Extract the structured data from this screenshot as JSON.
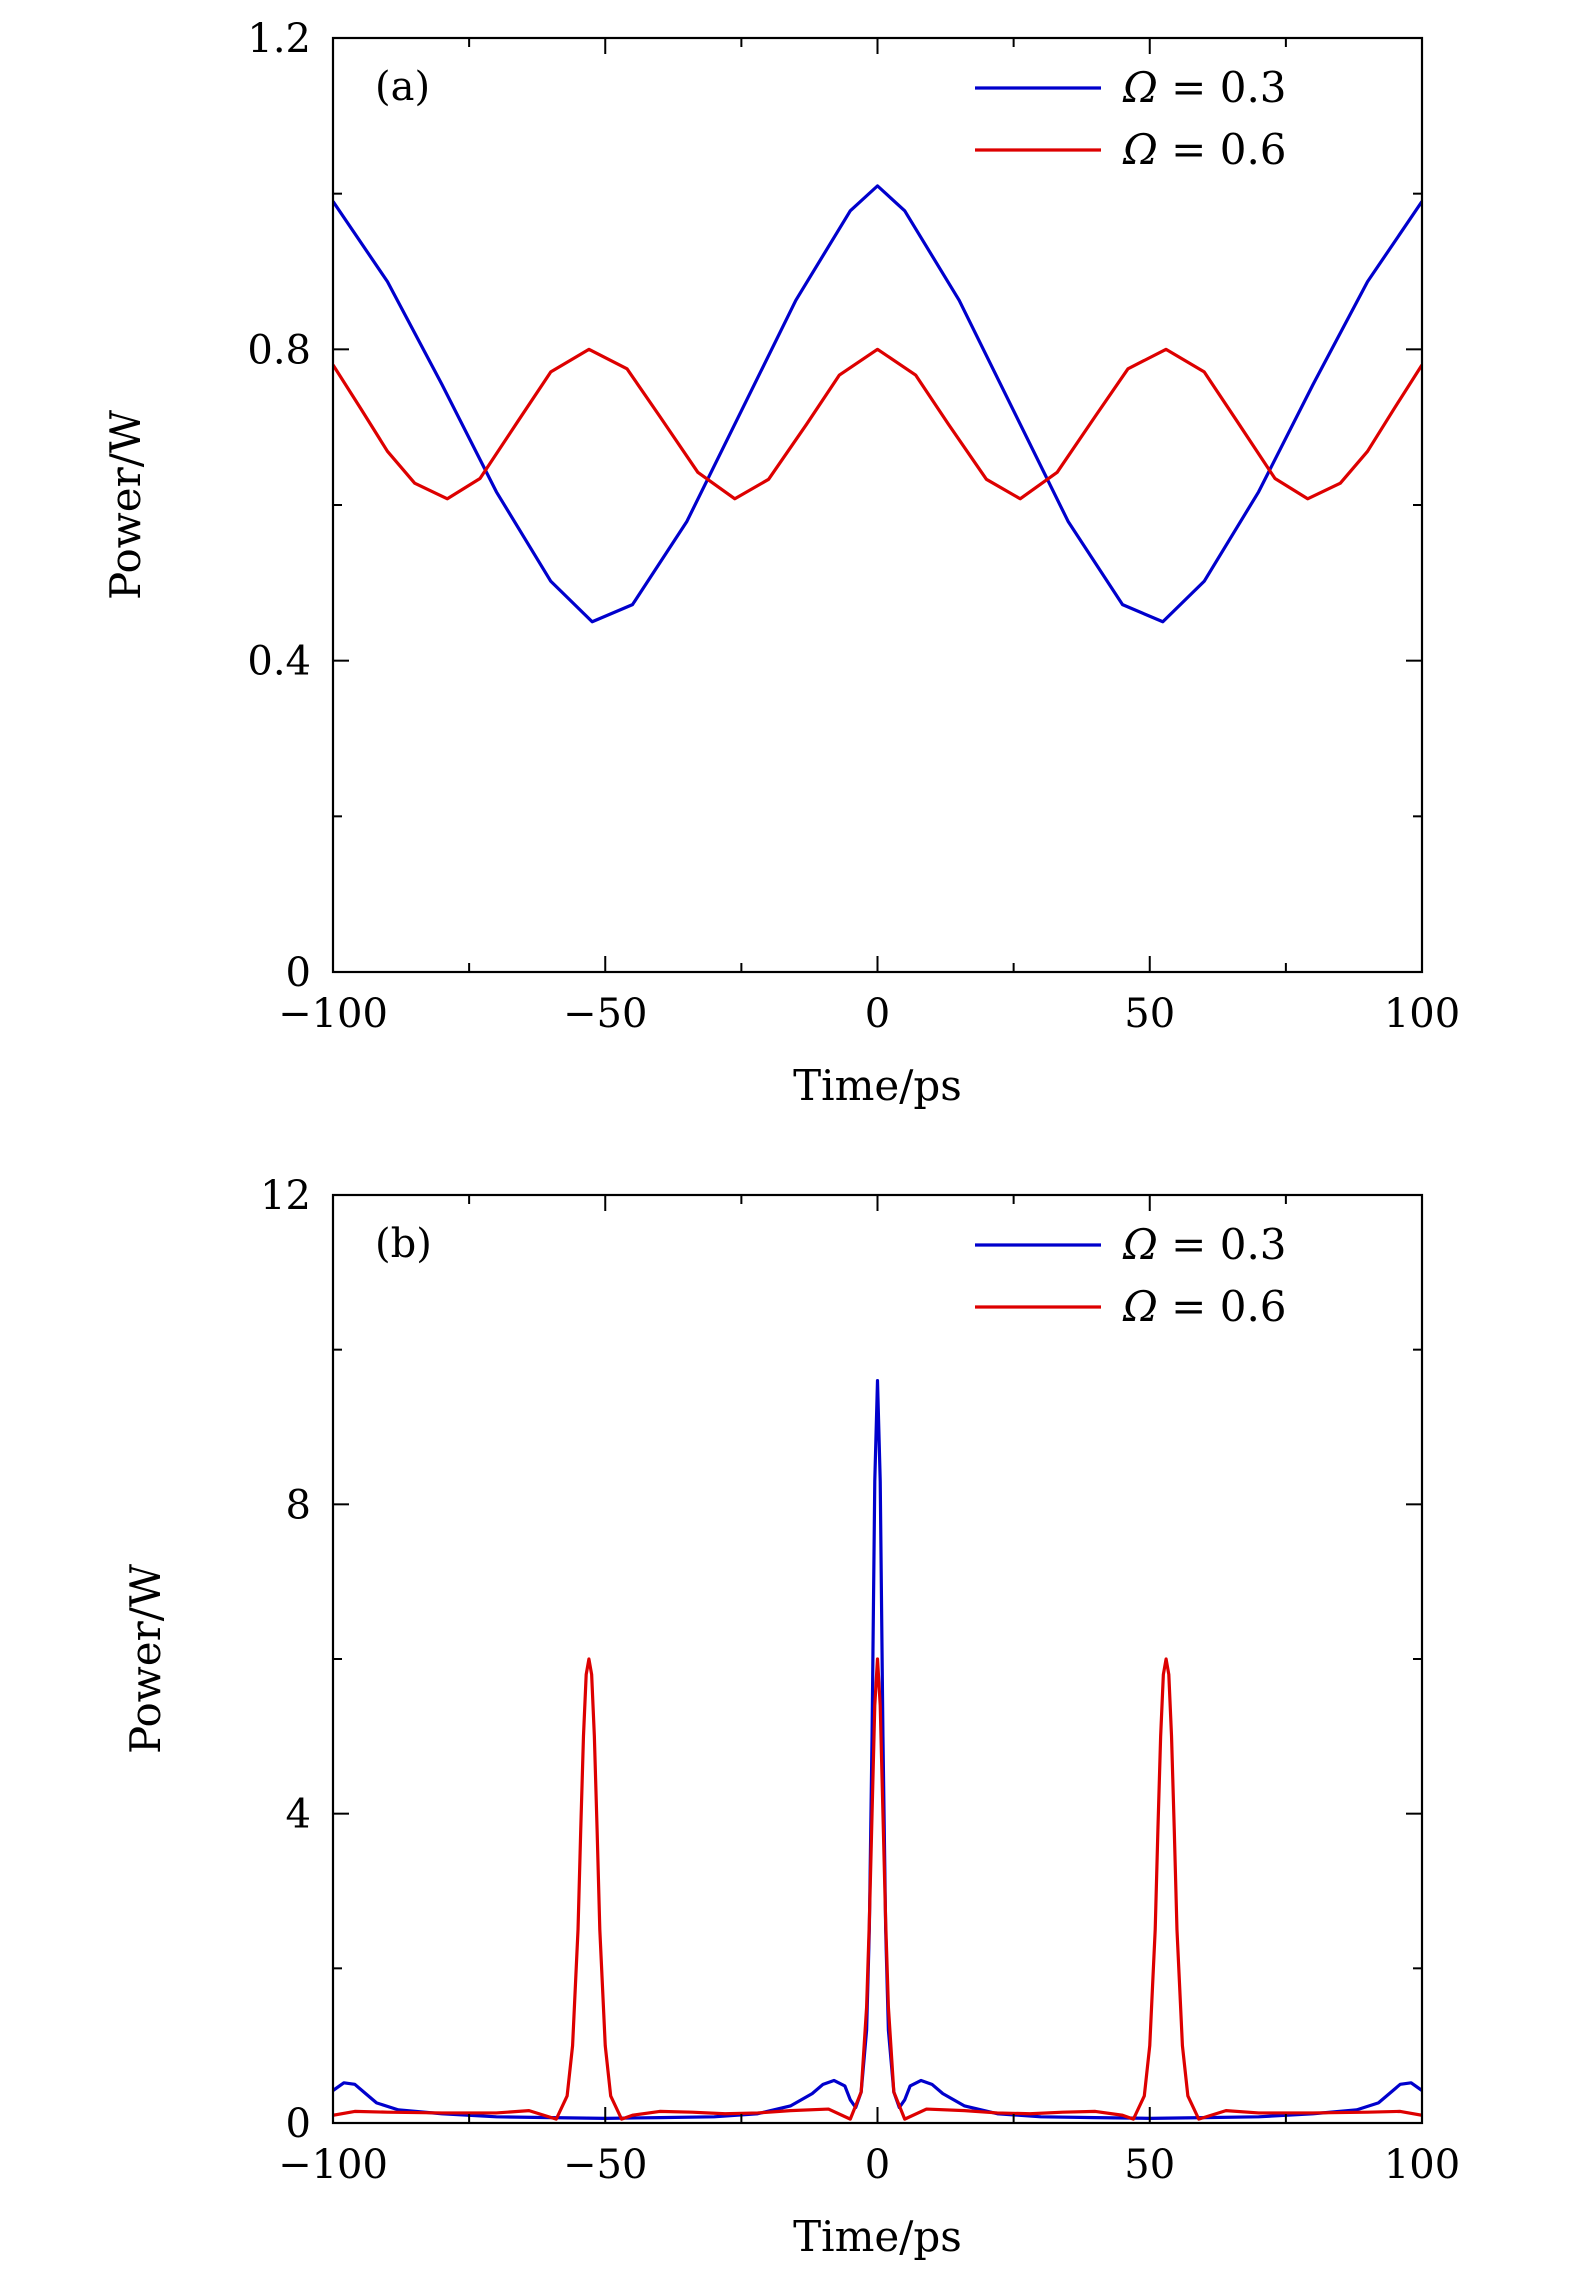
{
  "chart_data": [
    {
      "type": "line",
      "panel_label": "(a)",
      "xlabel": "Time/ps",
      "ylabel": "Power/W",
      "xlim": [
        -100,
        100
      ],
      "ylim": [
        0,
        1.2
      ],
      "x_ticks": [
        -100,
        -50,
        0,
        50,
        100
      ],
      "x_tick_labels": [
        "−100",
        "−50",
        "0",
        "50",
        "100"
      ],
      "x_minor_ticks": [
        -75,
        -25,
        25,
        75
      ],
      "y_ticks": [
        0,
        0.4,
        0.8,
        1.2
      ],
      "y_tick_labels": [
        "0",
        "0.4",
        "0.8",
        "1.2"
      ],
      "y_minor_ticks": [
        0.2,
        0.6,
        1.0
      ],
      "grid": false,
      "legend_position": "top-right",
      "series": [
        {
          "name": "Ω = 0.3",
          "color": "#0000cc",
          "x": [
            -100,
            -90,
            -80,
            -70,
            -60,
            -52.4,
            -45,
            -35,
            -25,
            -15,
            -5,
            0,
            5,
            15,
            25,
            35,
            45,
            52.4,
            60,
            70,
            80,
            90,
            100
          ],
          "y": [
            0.99,
            0.887,
            0.755,
            0.617,
            0.502,
            0.45,
            0.472,
            0.579,
            0.721,
            0.863,
            0.978,
            1.01,
            0.978,
            0.863,
            0.721,
            0.579,
            0.472,
            0.45,
            0.502,
            0.617,
            0.755,
            0.887,
            0.99
          ]
        },
        {
          "name": "Ω = 0.6",
          "color": "#dd0000",
          "x": [
            -100,
            -95,
            -90,
            -85,
            -79,
            -73,
            -66,
            -60,
            -53,
            -46,
            -40,
            -33,
            -26.2,
            -20,
            -13,
            -7,
            0,
            7,
            13,
            20,
            26.2,
            33,
            40,
            46,
            53,
            60,
            66,
            73,
            79,
            85,
            90,
            95,
            100
          ],
          "y": [
            0.78,
            0.725,
            0.669,
            0.628,
            0.608,
            0.634,
            0.708,
            0.771,
            0.8,
            0.775,
            0.714,
            0.642,
            0.608,
            0.633,
            0.704,
            0.767,
            0.8,
            0.767,
            0.704,
            0.633,
            0.608,
            0.642,
            0.714,
            0.775,
            0.8,
            0.771,
            0.708,
            0.634,
            0.608,
            0.628,
            0.669,
            0.725,
            0.78
          ]
        }
      ]
    },
    {
      "type": "line",
      "panel_label": "(b)",
      "xlabel": "Time/ps",
      "ylabel": "Power/W",
      "xlim": [
        -100,
        100
      ],
      "ylim": [
        0,
        12
      ],
      "x_ticks": [
        -100,
        -50,
        0,
        50,
        100
      ],
      "x_tick_labels": [
        "−100",
        "−50",
        "0",
        "50",
        "100"
      ],
      "x_minor_ticks": [
        -75,
        -25,
        25,
        75
      ],
      "y_ticks": [
        0,
        4,
        8,
        12
      ],
      "y_tick_labels": [
        "0",
        "4",
        "8",
        "12"
      ],
      "y_minor_ticks": [
        2,
        6,
        10
      ],
      "grid": false,
      "legend_position": "top-right",
      "series": [
        {
          "name": "Ω = 0.3",
          "color": "#0000cc",
          "x": [
            -100,
            -98,
            -96,
            -94,
            -92,
            -88,
            -80,
            -70,
            -60,
            -50,
            -40,
            -30,
            -22,
            -16,
            -12,
            -10,
            -8,
            -6,
            -5,
            -4,
            -3,
            -2,
            -1.5,
            -1,
            -0.5,
            0,
            0.5,
            1,
            1.5,
            2,
            3,
            4,
            5,
            6,
            8,
            10,
            12,
            16,
            22,
            30,
            40,
            50,
            60,
            70,
            80,
            88,
            92,
            94,
            96,
            98,
            100
          ],
          "y": [
            0.42,
            0.52,
            0.5,
            0.38,
            0.26,
            0.17,
            0.12,
            0.08,
            0.07,
            0.06,
            0.07,
            0.08,
            0.12,
            0.22,
            0.38,
            0.5,
            0.55,
            0.48,
            0.3,
            0.2,
            0.4,
            1.2,
            2.5,
            5.0,
            8.3,
            9.6,
            8.3,
            5.0,
            2.5,
            1.2,
            0.4,
            0.2,
            0.3,
            0.48,
            0.55,
            0.5,
            0.38,
            0.22,
            0.12,
            0.08,
            0.07,
            0.06,
            0.07,
            0.08,
            0.12,
            0.17,
            0.26,
            0.38,
            0.5,
            0.52,
            0.42
          ]
        },
        {
          "name": "Ω = 0.6",
          "color": "#dd0000",
          "x": [
            -100,
            -96,
            -90,
            -80,
            -70,
            -64,
            -59,
            -57,
            -56,
            -55,
            -54.5,
            -54,
            -53.5,
            -53,
            -52.5,
            -52,
            -51.5,
            -51,
            -50,
            -49,
            -47,
            -45,
            -40,
            -34,
            -28,
            -22,
            -16,
            -9,
            -5,
            -3,
            -2,
            -1.5,
            -1,
            -0.5,
            0,
            0.5,
            1,
            1.5,
            2,
            3,
            5,
            9,
            16,
            22,
            28,
            34,
            40,
            45,
            47,
            49,
            50,
            51,
            51.5,
            52,
            52.5,
            53,
            53.5,
            54,
            54.5,
            55,
            56,
            57,
            59,
            64,
            70,
            80,
            90,
            96,
            100
          ],
          "y": [
            0.1,
            0.15,
            0.14,
            0.13,
            0.13,
            0.16,
            0.05,
            0.35,
            1.0,
            2.5,
            3.8,
            5.0,
            5.8,
            6.0,
            5.8,
            5.0,
            3.8,
            2.5,
            1.0,
            0.35,
            0.05,
            0.1,
            0.15,
            0.14,
            0.12,
            0.13,
            0.16,
            0.18,
            0.05,
            0.4,
            1.5,
            2.6,
            4.0,
            5.4,
            6.0,
            5.4,
            4.0,
            2.6,
            1.5,
            0.4,
            0.05,
            0.18,
            0.16,
            0.13,
            0.12,
            0.14,
            0.15,
            0.1,
            0.05,
            0.35,
            1.0,
            2.5,
            3.8,
            5.0,
            5.8,
            6.0,
            5.8,
            5.0,
            3.8,
            2.5,
            1.0,
            0.35,
            0.05,
            0.16,
            0.13,
            0.13,
            0.14,
            0.15,
            0.1
          ]
        }
      ]
    }
  ]
}
